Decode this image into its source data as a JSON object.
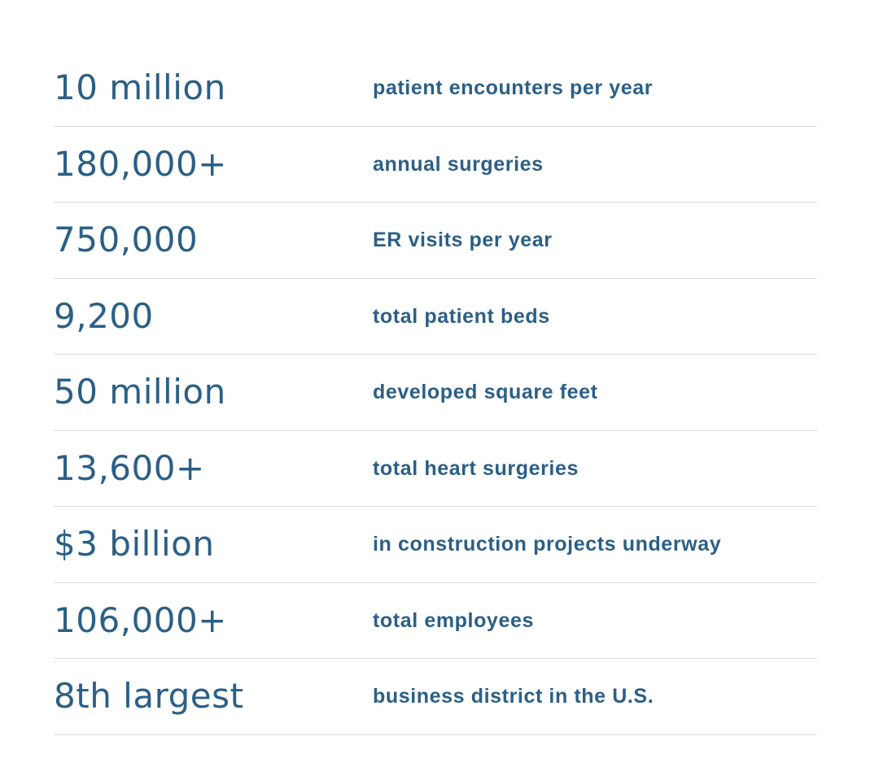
{
  "stats": [
    {
      "value": "10 million",
      "label": "patient encounters per year"
    },
    {
      "value": "180,000+",
      "label": "annual surgeries"
    },
    {
      "value": "750,000",
      "label": "ER visits per year"
    },
    {
      "value": "9,200",
      "label": "total patient beds"
    },
    {
      "value": "50 million",
      "label": "developed square feet"
    },
    {
      "value": "13,600+",
      "label": "total heart surgeries"
    },
    {
      "value": "$3 billion",
      "label": "in construction projects underway"
    },
    {
      "value": "106,000+",
      "label": "total employees"
    },
    {
      "value": "8th largest",
      "label": "business district in the U.S."
    }
  ],
  "colors": {
    "text": "#2b5f86",
    "divider": "#dcdcdc",
    "background": "#ffffff"
  }
}
